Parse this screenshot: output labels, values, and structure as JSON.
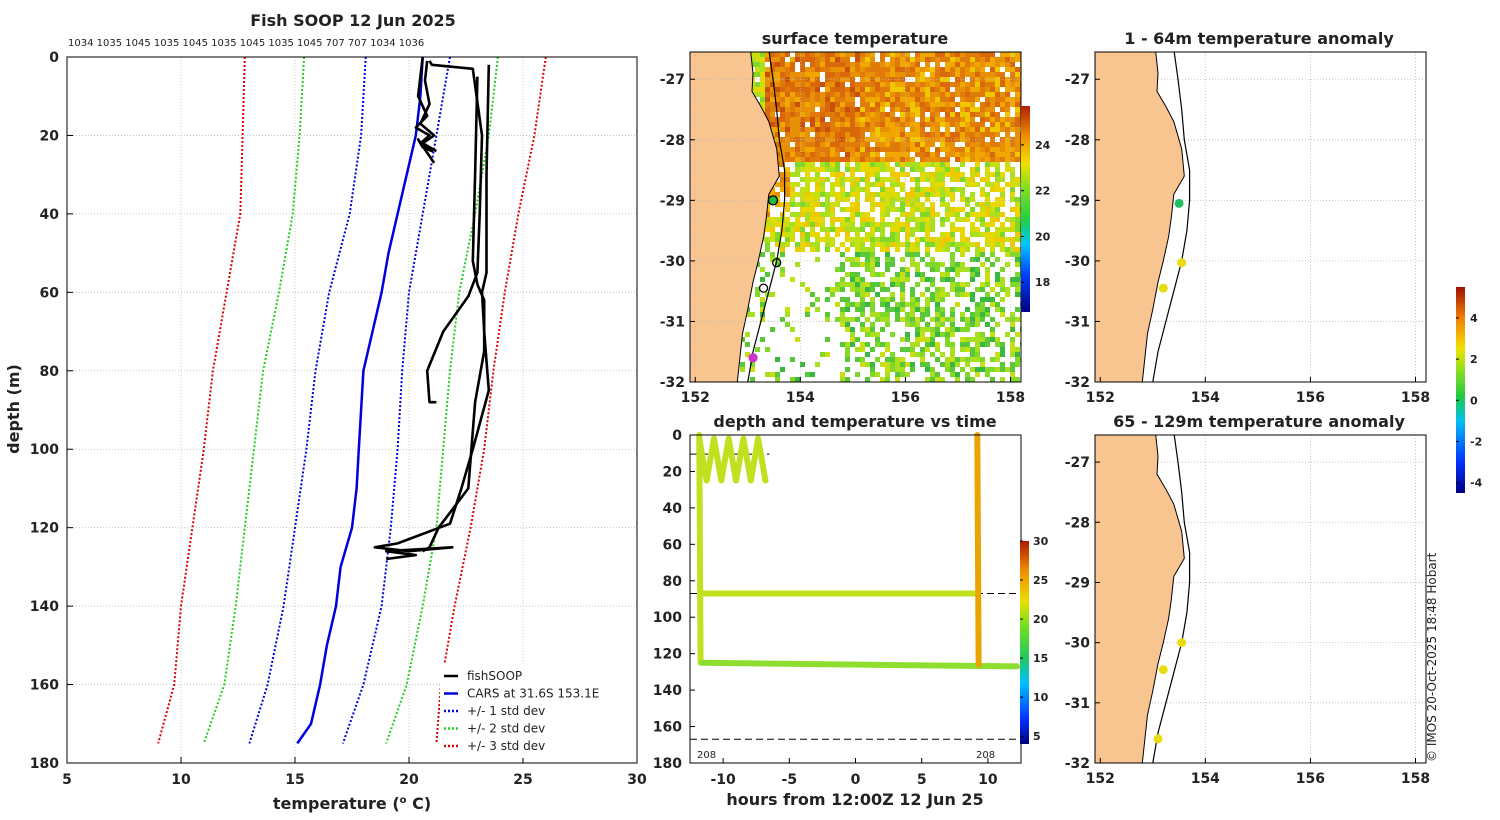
{
  "chart_data": [
    {
      "type": "line",
      "title": "Fish SOOP 12 Jun 2025",
      "top_labels": "1034 1035 1045 1035 1045 1035 1045 1035 1045 707 707 1034 1036",
      "xlabel": "temperature (",
      "xlabel_sup": "o",
      "xlabel_end": " C)",
      "ylabel": "depth (m)",
      "xlim": [
        5,
        30
      ],
      "ylim": [
        0,
        180
      ],
      "xticks": [
        "5",
        "10",
        "15",
        "20",
        "25",
        "30"
      ],
      "yticks": [
        "0",
        "20",
        "40",
        "60",
        "80",
        "100",
        "120",
        "140",
        "160",
        "180"
      ],
      "legend": {
        "items": [
          "fishSOOP",
          "CARS at 31.6S 153.1E",
          "+/- 1 std dev",
          "+/- 2 std dev",
          "+/- 3 std dev"
        ],
        "colors": [
          "#000000",
          "#0000dd",
          "#0000dd",
          "#22cc22",
          "#dd0000"
        ]
      },
      "series": [
        {
          "name": "CARS mean",
          "depth": [
            0,
            10,
            20,
            30,
            40,
            50,
            60,
            70,
            80,
            90,
            100,
            110,
            120,
            130,
            140,
            150,
            160,
            170,
            175
          ],
          "temp": [
            20.6,
            20.5,
            20.3,
            19.9,
            19.5,
            19.1,
            18.8,
            18.4,
            18.0,
            17.9,
            17.8,
            17.7,
            17.5,
            17.0,
            16.8,
            16.4,
            16.1,
            15.7,
            15.1
          ]
        },
        {
          "name": "+1 std",
          "depth": [
            0,
            20,
            40,
            60,
            80,
            100,
            120,
            140,
            160,
            175
          ],
          "temp": [
            21.8,
            21.2,
            20.6,
            20.0,
            19.7,
            19.5,
            19.2,
            18.8,
            18.0,
            17.1
          ]
        },
        {
          "name": "-1 std",
          "depth": [
            0,
            20,
            40,
            60,
            80,
            100,
            120,
            140,
            160,
            175
          ],
          "temp": [
            18.1,
            17.9,
            17.4,
            16.5,
            15.9,
            15.5,
            15.0,
            14.5,
            13.8,
            13.0
          ]
        },
        {
          "name": "+2 std",
          "depth": [
            0,
            20,
            40,
            60,
            80,
            100,
            120,
            140,
            160,
            175
          ],
          "temp": [
            23.9,
            23.5,
            22.9,
            22.2,
            21.8,
            21.5,
            21.2,
            20.6,
            19.9,
            19.0
          ]
        },
        {
          "name": "-2 std",
          "depth": [
            0,
            20,
            40,
            60,
            80,
            100,
            120,
            140,
            160,
            175
          ],
          "temp": [
            15.4,
            15.2,
            14.9,
            14.3,
            13.6,
            13.2,
            12.8,
            12.4,
            11.9,
            11.0
          ]
        },
        {
          "name": "+3 std",
          "depth": [
            0,
            20,
            40,
            60,
            80,
            100,
            120,
            140,
            160,
            175
          ],
          "temp": [
            26.0,
            25.5,
            24.8,
            24.2,
            23.7,
            23.3,
            22.7,
            22.0,
            21.4,
            21.2
          ]
        },
        {
          "name": "-3 std",
          "depth": [
            0,
            20,
            40,
            60,
            80,
            100,
            120,
            140,
            160,
            175
          ],
          "temp": [
            12.8,
            12.7,
            12.6,
            12.0,
            11.4,
            11.0,
            10.5,
            10.0,
            9.7,
            9.0
          ]
        },
        {
          "name": "fishSOOP",
          "profiles": [
            {
              "temp": [
                20.6,
                20.5,
                20.4,
                20.8,
                20.3,
                20.9,
                20.5,
                21.0,
                20.6,
                20.4,
                21.1
              ],
              "depth": [
                0,
                5,
                10,
                15,
                18,
                20,
                22,
                24,
                23,
                21,
                27
              ]
            },
            {
              "temp": [
                20.8,
                20.7,
                20.9,
                20.5,
                21.1,
                20.6,
                21.2
              ],
              "depth": [
                1,
                6,
                12,
                17,
                20,
                22,
                24
              ]
            },
            {
              "temp": [
                20.9,
                21.0,
                22.8,
                23.2,
                23.1,
                23.0,
                22.6,
                21.5,
                20.8,
                20.9,
                21.2
              ],
              "depth": [
                1,
                2,
                3,
                20,
                40,
                55,
                61,
                70,
                80,
                88,
                88
              ]
            },
            {
              "temp": [
                23.0,
                22.9,
                22.8,
                23.0,
                23.3,
                23.3,
                22.9,
                22.6,
                21.3,
                20.9,
                20.6
              ],
              "depth": [
                5,
                30,
                52,
                58,
                62,
                75,
                88,
                110,
                120,
                125,
                126
              ]
            },
            {
              "temp": [
                23.5,
                23.4,
                23.4,
                23.2,
                23.3,
                23.5,
                22.8,
                22.3,
                21.8,
                19.5,
                18.5,
                20.0,
                21.9,
                19.0,
                20.3,
                19.0
              ],
              "depth": [
                2,
                30,
                55,
                60,
                70,
                85,
                100,
                110,
                119,
                124,
                125,
                126,
                125,
                126,
                127,
                128
              ]
            }
          ]
        }
      ]
    },
    {
      "type": "heatmap",
      "title": "surface temperature",
      "xticks": [
        "152",
        "154",
        "156",
        "158"
      ],
      "yticks": [
        "-27",
        "-28",
        "-29",
        "-30",
        "-31",
        "-32"
      ],
      "xlim": [
        151.9,
        158.2
      ],
      "ylim": [
        -32.0,
        -26.55
      ],
      "colorbar_ticks": [
        "18",
        "20",
        "22",
        "24"
      ],
      "colorbar_range": [
        16.7,
        25.7
      ],
      "stations": [
        [
          153.48,
          -29.0
        ],
        [
          153.55,
          -30.03
        ],
        [
          153.3,
          -30.45
        ],
        [
          153.1,
          -31.6
        ]
      ]
    },
    {
      "type": "scatter",
      "title": "1 - 64m temperature anomaly",
      "xticks": [
        "152",
        "154",
        "156",
        "158"
      ],
      "yticks": [
        "-27",
        "-28",
        "-29",
        "-30",
        "-31",
        "-32"
      ],
      "points": [
        [
          153.5,
          -29.05,
          0.3
        ],
        [
          153.55,
          -30.03,
          2.5
        ],
        [
          153.2,
          -30.45,
          2.7
        ]
      ]
    },
    {
      "type": "scatter",
      "title": "depth and temperature vs time",
      "xlabel": "hours from 12:00Z 12 Jun 25",
      "xlim": [
        -12.5,
        12.5
      ],
      "ylim": [
        0,
        180
      ],
      "xticks": [
        "-10",
        "-5",
        "0",
        "5",
        "10"
      ],
      "yticks": [
        "0",
        "20",
        "40",
        "60",
        "80",
        "100",
        "120",
        "140",
        "160",
        "180"
      ],
      "colorbar_ticks": [
        "5",
        "10",
        "15",
        "20",
        "25",
        "30"
      ],
      "colorbar_range": [
        4,
        30
      ],
      "ref_depths": [
        10.5,
        87,
        167
      ],
      "bottom_labels": [
        "208",
        "208"
      ],
      "segments": [
        {
          "x": [
            -11.8,
            -11.7
          ],
          "y": [
            0,
            125
          ],
          "t": 21.0
        },
        {
          "x": [
            -11.8,
            -6.8
          ],
          "y": [
            10,
            10
          ],
          "t": 20.8,
          "wiggle": true
        },
        {
          "x": [
            -11.6,
            9.2
          ],
          "y": [
            87,
            87
          ],
          "t": 21.0
        },
        {
          "x": [
            -11.6,
            12.2
          ],
          "y": [
            125,
            127
          ],
          "t": 20.0
        },
        {
          "x": [
            9.2,
            9.3
          ],
          "y": [
            0,
            126
          ],
          "t": 23.3
        }
      ]
    },
    {
      "type": "scatter",
      "title": "65 - 129m temperature anomaly",
      "xticks": [
        "152",
        "154",
        "156",
        "158"
      ],
      "yticks": [
        "-27",
        "-28",
        "-29",
        "-30",
        "-31",
        "-32"
      ],
      "points": [
        [
          153.55,
          -30.0,
          2.5
        ],
        [
          153.2,
          -30.45,
          2.8
        ],
        [
          153.1,
          -31.6,
          2.8
        ]
      ],
      "colorbar_ticks": [
        "4",
        "2",
        "0",
        "-2",
        "-4"
      ],
      "colorbar_range": [
        -4.5,
        5.5
      ]
    }
  ],
  "footer": "© IMOS 20-Oct-2025 18:48 Hobart"
}
